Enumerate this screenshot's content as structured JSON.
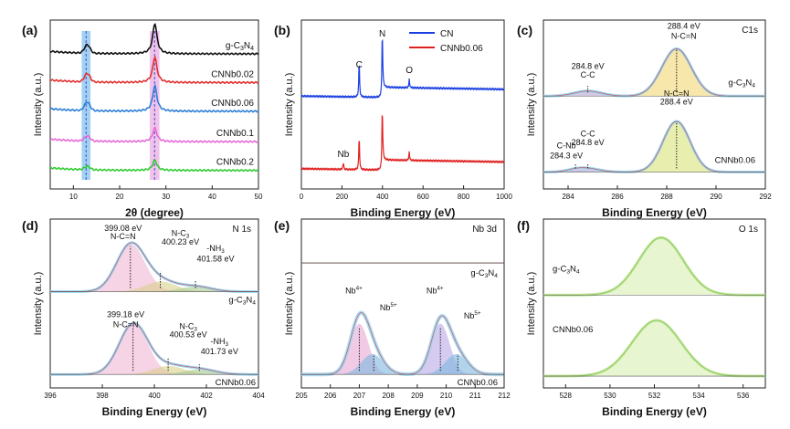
{
  "chart_data": [
    {
      "panel": "(a)",
      "type": "line",
      "title": "",
      "xlabel": "2θ (degree)",
      "ylabel": "Intensity (a.u.)",
      "xlim": [
        5,
        50
      ],
      "xticks": [
        "10",
        "20",
        "30",
        "40",
        "50"
      ],
      "highlight_bands": [
        {
          "from": 11.8,
          "to": 13.7,
          "color": "#5aa9e6"
        },
        {
          "from": 26.5,
          "to": 28.6,
          "color": "#e58fd8"
        }
      ],
      "series": [
        {
          "name": "g-C3N4",
          "label_parts": [
            "g-C",
            "3",
            "N",
            "4"
          ],
          "color": "#111111",
          "offset": 0.8,
          "p13": 0.05,
          "p27": 0.18
        },
        {
          "name": "CNNb0.02",
          "label_parts": [
            "CNNb0.02"
          ],
          "color": "#e23030",
          "offset": 0.63,
          "p13": 0.05,
          "p27": 0.15
        },
        {
          "name": "CNNb0.06",
          "label_parts": [
            "CNNb0.06"
          ],
          "color": "#2c7fd6",
          "offset": 0.46,
          "p13": 0.05,
          "p27": 0.15
        },
        {
          "name": "CNNb0.1",
          "label_parts": [
            "CNNb0.1"
          ],
          "color": "#e66ad8",
          "offset": 0.28,
          "p13": 0.03,
          "p27": 0.08
        },
        {
          "name": "CNNb0.2",
          "label_parts": [
            "CNNb0.2"
          ],
          "color": "#2ecc2e",
          "offset": 0.11,
          "p13": 0.02,
          "p27": 0.06
        }
      ]
    },
    {
      "panel": "(b)",
      "type": "line",
      "xlabel": "Binding Energy (eV)",
      "ylabel": "Intensity (a.u.)",
      "xlim": [
        0,
        1000
      ],
      "xticks": [
        "0",
        "200",
        "400",
        "600",
        "800",
        "1000"
      ],
      "legend": [
        {
          "name": "CN",
          "color": "#1a3fe0"
        },
        {
          "name": "CNNb0.06",
          "color": "#e02020"
        }
      ],
      "series": [
        {
          "name": "CN",
          "color": "#1a3fe0",
          "offset": 0.55,
          "peaks": [
            {
              "x": 285,
              "h": 0.22
            },
            {
              "x": 399,
              "h": 0.4
            },
            {
              "x": 532,
              "h": 0.05
            }
          ]
        },
        {
          "name": "CNNb0.06",
          "color": "#e02020",
          "offset": 0.12,
          "peaks": [
            {
              "x": 207,
              "h": 0.04
            },
            {
              "x": 285,
              "h": 0.2
            },
            {
              "x": 399,
              "h": 0.38
            },
            {
              "x": 532,
              "h": 0.05
            }
          ]
        }
      ],
      "annotations": [
        "N",
        "C",
        "O",
        "Nb"
      ]
    },
    {
      "panel": "(c)",
      "type": "line",
      "title": "C1s",
      "xlabel": "Binding Energy (eV)",
      "ylabel": "Intensity (a.u.)",
      "xlim": [
        283,
        292
      ],
      "xticks": [
        "284",
        "286",
        "288",
        "290",
        "292"
      ],
      "samples": [
        {
          "name": "g-C3N4",
          "label_parts": [
            "g-C",
            "3",
            "N",
            "4"
          ],
          "peaks": [
            {
              "label": "C-C",
              "value": "284.8 eV",
              "x": 284.8
            },
            {
              "label": "N-C=N",
              "value": "288.4 eV",
              "x": 288.4
            }
          ]
        },
        {
          "name": "CNNb0.06",
          "label_parts": [
            "CNNb0.06"
          ],
          "peaks": [
            {
              "label": "C-Nb",
              "value": "284.3 eV",
              "x": 284.3
            },
            {
              "label": "C-C",
              "value": "284.8 eV",
              "x": 284.8
            },
            {
              "label": "N-C=N",
              "value": "288.4 eV",
              "x": 288.4
            }
          ]
        }
      ]
    },
    {
      "panel": "(d)",
      "type": "line",
      "title": "N 1s",
      "xlabel": "Binding Energy (eV)",
      "ylabel": "Intensity (a.u.)",
      "xlim": [
        396,
        404
      ],
      "xticks": [
        "396",
        "398",
        "400",
        "402",
        "404"
      ],
      "samples": [
        {
          "name": "g-C3N4",
          "label_parts": [
            "g-C",
            "3",
            "N",
            "4"
          ],
          "peaks": [
            {
              "label": "N-C=N",
              "value": "399.08 eV",
              "x": 399.08
            },
            {
              "label": "N-C3",
              "value": "400.23 eV",
              "x": 400.23
            },
            {
              "label": "-NH3",
              "value": "401.58 eV",
              "x": 401.58
            }
          ]
        },
        {
          "name": "CNNb0.06",
          "label_parts": [
            "CNNb0.06"
          ],
          "peaks": [
            {
              "label": "N-C=N",
              "value": "399.18 eV",
              "x": 399.18
            },
            {
              "label": "N-C3",
              "value": "400.53 eV",
              "x": 400.53
            },
            {
              "label": "-NH3",
              "value": "401.73 eV",
              "x": 401.73
            }
          ]
        }
      ]
    },
    {
      "panel": "(e)",
      "type": "line",
      "title": "Nb 3d",
      "xlabel": "Binding Energy (eV)",
      "ylabel": "Intensity (a.u.)",
      "xlim": [
        205,
        212
      ],
      "xticks": [
        "205",
        "206",
        "207",
        "208",
        "209",
        "210",
        "211",
        "212"
      ],
      "samples": [
        {
          "name": "g-C3N4",
          "label_parts": [
            "g-C",
            "3",
            "N",
            "4"
          ],
          "peaks": []
        },
        {
          "name": "CNNb0.06",
          "label_parts": [
            "CNNb0.06"
          ],
          "peaks": [
            {
              "label": "Nb4+",
              "x": 207.0
            },
            {
              "label": "Nb5+",
              "x": 207.5
            },
            {
              "label": "Nb4+",
              "x": 209.8
            },
            {
              "label": "Nb5+",
              "x": 210.4
            }
          ]
        }
      ]
    },
    {
      "panel": "(f)",
      "type": "line",
      "title": "O 1s",
      "xlabel": "Binding Energy (eV)",
      "ylabel": "Intensity (a.u.)",
      "xlim": [
        527,
        537
      ],
      "xticks": [
        "528",
        "530",
        "532",
        "534",
        "536"
      ],
      "samples": [
        {
          "name": "g-C3N4",
          "label_parts": [
            "g-C",
            "3",
            "N",
            "4"
          ],
          "peaks": [
            {
              "x": 532.3
            }
          ]
        },
        {
          "name": "CNNb0.06",
          "label_parts": [
            "CNNb0.06"
          ],
          "peaks": [
            {
              "x": 532.1
            }
          ]
        }
      ]
    }
  ]
}
